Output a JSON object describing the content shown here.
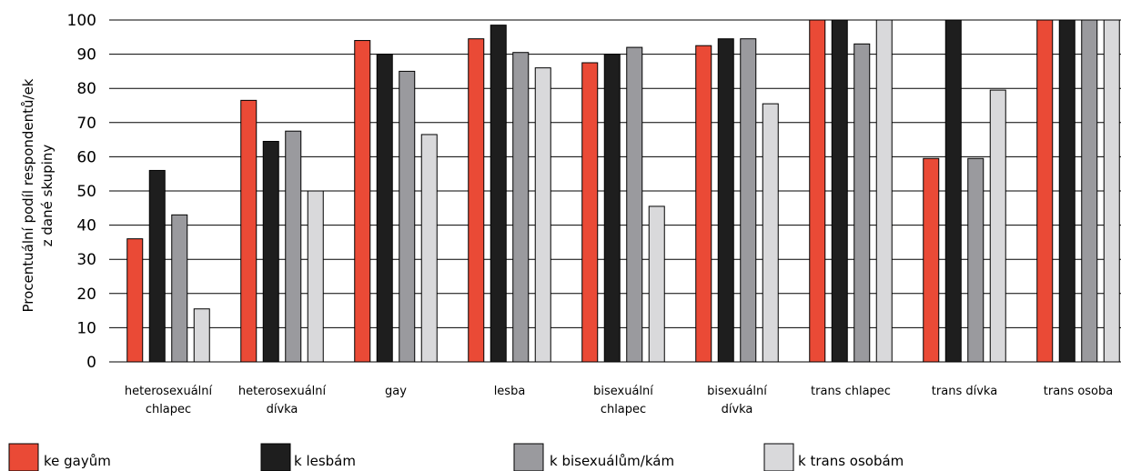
{
  "chart_data": {
    "type": "bar",
    "ylabel_lines": [
      "Procentuální podíl respondentů/ek",
      "z dané skupiny"
    ],
    "ylim": [
      0,
      100
    ],
    "yticks": [
      0,
      10,
      20,
      30,
      40,
      50,
      60,
      70,
      80,
      90,
      100
    ],
    "grid": true,
    "legend_position": "bottom",
    "categories": [
      [
        "heterosexuální",
        "chlapec"
      ],
      [
        "heterosexuální",
        "dívka"
      ],
      [
        "gay"
      ],
      [
        "lesba"
      ],
      [
        "bisexuální",
        "chlapec"
      ],
      [
        "bisexuální",
        "dívka"
      ],
      [
        "trans chlapec"
      ],
      [
        "trans dívka"
      ],
      [
        "trans osoba"
      ]
    ],
    "series": [
      {
        "name": "ke gayům",
        "color": "#ea4a36",
        "values": [
          36,
          76.5,
          94,
          94.5,
          87.5,
          92.5,
          100,
          59.5,
          100
        ]
      },
      {
        "name": "k lesbám",
        "color": "#1e1e1e",
        "values": [
          56,
          64.5,
          90,
          98.5,
          90,
          94.5,
          100,
          100,
          100
        ]
      },
      {
        "name": "k bisexuálům/kám",
        "color": "#9a9a9e",
        "values": [
          43,
          67.5,
          85,
          90.5,
          92,
          94.5,
          93,
          59.5,
          100
        ]
      },
      {
        "name": "k trans osobám",
        "color": "#d9d9db",
        "values": [
          15.5,
          50,
          66.5,
          86,
          45.5,
          75.5,
          100,
          79.5,
          100
        ]
      }
    ]
  }
}
